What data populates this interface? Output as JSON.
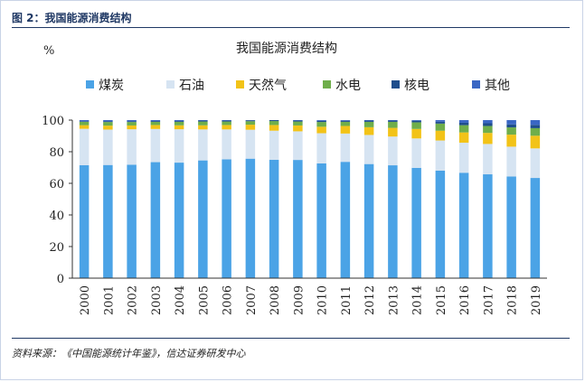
{
  "figure": {
    "label": "图 2：我国能源消费结构",
    "source": "资料来源：《中国能源统计年鉴》，信达证券研发中心"
  },
  "chart_data": {
    "type": "bar",
    "stacked": true,
    "title": "我国能源消费结构",
    "ylabel": "%",
    "xlabel": "",
    "ylim": [
      0,
      100
    ],
    "yticks": [
      0,
      20,
      40,
      60,
      80,
      100
    ],
    "grid": false,
    "legend_position": "top",
    "categories": [
      "2000",
      "2001",
      "2002",
      "2003",
      "2004",
      "2005",
      "2006",
      "2007",
      "2008",
      "2009",
      "2010",
      "2011",
      "2012",
      "2013",
      "2014",
      "2015",
      "2016",
      "2017",
      "2018",
      "2019"
    ],
    "series": [
      {
        "name": "煤炭",
        "color": "#4ba3e6",
        "values": [
          71.5,
          71.6,
          71.8,
          73.4,
          73.1,
          74.5,
          75.2,
          75.6,
          74.9,
          74.8,
          72.6,
          73.6,
          72.2,
          71.4,
          69.8,
          68.0,
          66.7,
          65.7,
          64.3,
          63.4
        ]
      },
      {
        "name": "石油",
        "color": "#d6e4f2",
        "values": [
          23.0,
          22.4,
          22.4,
          21.0,
          21.1,
          19.6,
          18.9,
          18.3,
          18.4,
          18.1,
          19.1,
          17.9,
          18.4,
          18.2,
          18.6,
          19.1,
          19.0,
          19.2,
          18.9,
          18.7
        ]
      },
      {
        "name": "天然气",
        "color": "#f2c318",
        "values": [
          2.3,
          2.5,
          2.4,
          2.5,
          2.5,
          2.6,
          2.8,
          3.2,
          3.6,
          3.7,
          4.1,
          4.8,
          4.9,
          5.5,
          6.0,
          6.2,
          6.5,
          7.0,
          7.6,
          8.0
        ]
      },
      {
        "name": "水电",
        "color": "#6fae4b",
        "values": [
          2.1,
          2.3,
          2.2,
          2.0,
          2.2,
          2.4,
          2.2,
          2.2,
          2.5,
          2.5,
          3.0,
          2.6,
          3.4,
          3.8,
          4.2,
          4.5,
          4.6,
          4.4,
          4.6,
          4.8
        ]
      },
      {
        "name": "核电",
        "color": "#1f4e8c",
        "values": [
          0.4,
          0.4,
          0.4,
          0.5,
          0.5,
          0.6,
          0.6,
          0.6,
          0.6,
          0.6,
          0.7,
          0.7,
          0.8,
          0.8,
          1.0,
          1.2,
          1.5,
          1.7,
          1.9,
          2.1
        ]
      },
      {
        "name": "其他",
        "color": "#3a67c4",
        "values": [
          0.7,
          0.8,
          0.8,
          0.6,
          0.6,
          0.3,
          0.3,
          0.1,
          0.0,
          0.3,
          0.5,
          0.4,
          0.3,
          0.3,
          0.4,
          1.0,
          1.7,
          2.0,
          2.7,
          3.0
        ]
      }
    ]
  }
}
